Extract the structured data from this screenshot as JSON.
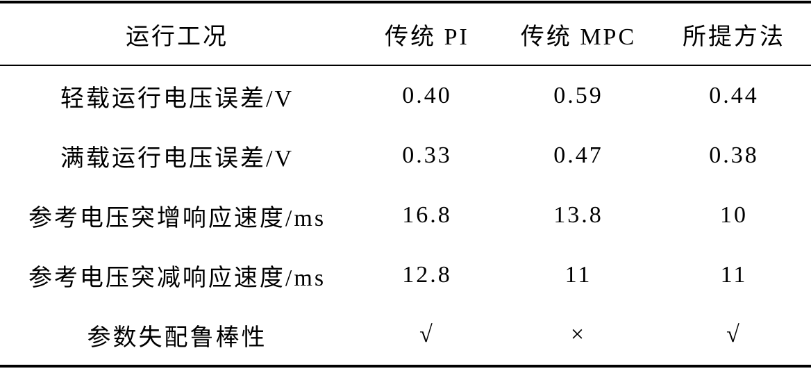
{
  "table": {
    "header": [
      "运行工况",
      "传统 PI",
      "传统 MPC",
      "所提方法"
    ],
    "rows": [
      [
        "轻载运行电压误差/V",
        "0.40",
        "0.59",
        "0.44"
      ],
      [
        "满载运行电压误差/V",
        "0.33",
        "0.47",
        "0.38"
      ],
      [
        "参考电压突增响应速度/ms",
        "16.8",
        "13.8",
        "10"
      ],
      [
        "参考电压突减响应速度/ms",
        "12.8",
        "11",
        "11"
      ],
      [
        "参数失配鲁棒性",
        "√",
        "×",
        "√"
      ]
    ]
  }
}
